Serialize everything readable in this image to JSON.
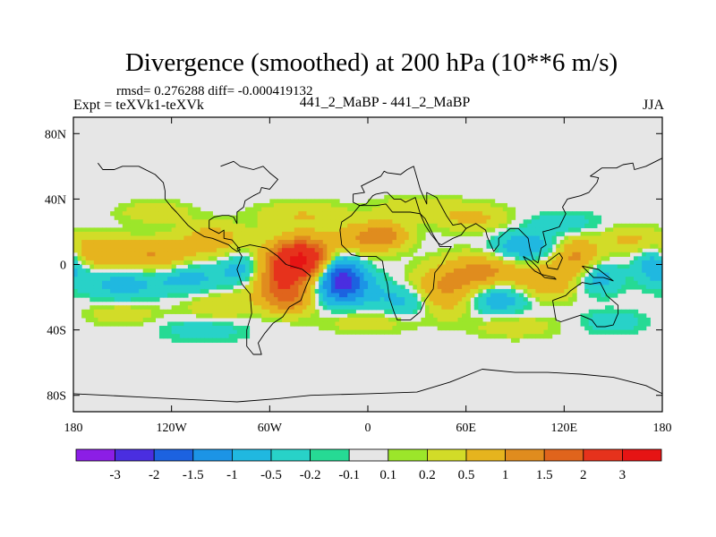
{
  "title": "Divergence (smoothed) at 200 hPa (10**6 m/s)",
  "stats": "rmsd= 0.276288 diff= -0.000419132",
  "experiment": "Expt = teXVk1-teXVk",
  "cases": "441_2_MaBP - 441_2_MaBP",
  "season": "JJA",
  "chart_data": {
    "type": "heatmap",
    "title": "Divergence (smoothed) at 200 hPa (10**6 m/s)",
    "projection": "cylindrical equidistant",
    "xlim": [
      -180,
      180
    ],
    "ylim": [
      -90,
      90
    ],
    "x_ticks": [
      {
        "value": -180,
        "label": "180"
      },
      {
        "value": -120,
        "label": "120W"
      },
      {
        "value": -60,
        "label": "60W"
      },
      {
        "value": 0,
        "label": "0"
      },
      {
        "value": 60,
        "label": "60E"
      },
      {
        "value": 120,
        "label": "120E"
      },
      {
        "value": 180,
        "label": "180"
      }
    ],
    "y_ticks": [
      {
        "value": 80,
        "label": "80N"
      },
      {
        "value": 40,
        "label": "40N"
      },
      {
        "value": 0,
        "label": "0"
      },
      {
        "value": -40,
        "label": "40S"
      },
      {
        "value": -80,
        "label": "80S"
      }
    ],
    "colorbar": {
      "labels": [
        "-3",
        "-2",
        "-1.5",
        "-1",
        "-0.5",
        "-0.2",
        "-0.1",
        "0.1",
        "0.2",
        "0.5",
        "1",
        "1.5",
        "2",
        "3"
      ],
      "colors": [
        "#8c1ee6",
        "#4a2ee0",
        "#1c62e0",
        "#1c94e6",
        "#20b8e0",
        "#28d2c8",
        "#26da94",
        "#e6e6e6",
        "#9ce62a",
        "#d2dc28",
        "#e6b41e",
        "#e08c1e",
        "#e0641c",
        "#e6321c",
        "#e61414"
      ]
    },
    "grid": false,
    "features": [
      {
        "lon": -40,
        "lat": 5,
        "sx": 14,
        "sy": 8,
        "value": 2.2
      },
      {
        "lon": -35,
        "lat": -2,
        "sx": 18,
        "sy": 10,
        "value": 1.2
      },
      {
        "lon": -18,
        "lat": -5,
        "sx": 10,
        "sy": 10,
        "value": -2.4
      },
      {
        "lon": -12,
        "lat": -14,
        "sx": 14,
        "sy": 8,
        "value": -1.0
      },
      {
        "lon": -55,
        "lat": -10,
        "sx": 12,
        "sy": 9,
        "value": 1.4
      },
      {
        "lon": -48,
        "lat": -22,
        "sx": 10,
        "sy": 6,
        "value": 1.0
      },
      {
        "lon": -5,
        "lat": 15,
        "sx": 12,
        "sy": 7,
        "value": 0.9
      },
      {
        "lon": 12,
        "lat": 18,
        "sx": 10,
        "sy": 6,
        "value": 1.0
      },
      {
        "lon": 45,
        "lat": -18,
        "sx": 16,
        "sy": 9,
        "value": 1.1
      },
      {
        "lon": 25,
        "lat": -22,
        "sx": 12,
        "sy": 7,
        "value": -0.9
      },
      {
        "lon": 70,
        "lat": -5,
        "sx": 18,
        "sy": 8,
        "value": 1.2
      },
      {
        "lon": 78,
        "lat": -20,
        "sx": 14,
        "sy": 7,
        "value": -1.0
      },
      {
        "lon": 95,
        "lat": 10,
        "sx": 14,
        "sy": 7,
        "value": -0.9
      },
      {
        "lon": 65,
        "lat": 28,
        "sx": 16,
        "sy": 6,
        "value": 0.6
      },
      {
        "lon": 110,
        "lat": -10,
        "sx": 14,
        "sy": 8,
        "value": 0.9
      },
      {
        "lon": 128,
        "lat": 5,
        "sx": 10,
        "sy": 8,
        "value": 1.1
      },
      {
        "lon": 140,
        "lat": -8,
        "sx": 10,
        "sy": 7,
        "value": -0.8
      },
      {
        "lon": 160,
        "lat": 15,
        "sx": 12,
        "sy": 6,
        "value": 0.6
      },
      {
        "lon": 175,
        "lat": 0,
        "sx": 8,
        "sy": 8,
        "value": -0.9
      },
      {
        "lon": -165,
        "lat": 8,
        "sx": 14,
        "sy": 7,
        "value": 0.9
      },
      {
        "lon": -150,
        "lat": -12,
        "sx": 16,
        "sy": 7,
        "value": -0.7
      },
      {
        "lon": -130,
        "lat": 5,
        "sx": 16,
        "sy": 7,
        "value": 1.0
      },
      {
        "lon": -110,
        "lat": -8,
        "sx": 14,
        "sy": 7,
        "value": -0.7
      },
      {
        "lon": -95,
        "lat": 15,
        "sx": 14,
        "sy": 7,
        "value": 0.8
      },
      {
        "lon": -75,
        "lat": -3,
        "sx": 10,
        "sy": 7,
        "value": -0.9
      },
      {
        "lon": -90,
        "lat": -25,
        "sx": 16,
        "sy": 6,
        "value": 0.5
      },
      {
        "lon": -130,
        "lat": 32,
        "sx": 16,
        "sy": 5,
        "value": 0.4
      },
      {
        "lon": -40,
        "lat": 30,
        "sx": 20,
        "sy": 6,
        "value": 0.5
      },
      {
        "lon": 30,
        "lat": 35,
        "sx": 18,
        "sy": 5,
        "value": 0.4
      },
      {
        "lon": 120,
        "lat": 25,
        "sx": 16,
        "sy": 5,
        "value": -0.4
      },
      {
        "lon": -100,
        "lat": -40,
        "sx": 18,
        "sy": 5,
        "value": -0.4
      },
      {
        "lon": 0,
        "lat": -35,
        "sx": 20,
        "sy": 5,
        "value": 0.4
      },
      {
        "lon": 90,
        "lat": -38,
        "sx": 18,
        "sy": 5,
        "value": 0.4
      },
      {
        "lon": -150,
        "lat": -30,
        "sx": 16,
        "sy": 5,
        "value": 0.4
      },
      {
        "lon": 150,
        "lat": -35,
        "sx": 14,
        "sy": 5,
        "value": -0.4
      }
    ],
    "coastline": [
      [
        [
          -180,
          -79
        ],
        [
          -160,
          -80
        ],
        [
          -140,
          -81
        ],
        [
          -120,
          -82
        ],
        [
          -100,
          -83
        ],
        [
          -80,
          -84
        ],
        [
          -55,
          -82
        ],
        [
          -35,
          -80
        ],
        [
          0,
          -79
        ],
        [
          30,
          -78
        ],
        [
          50,
          -72
        ],
        [
          70,
          -64
        ],
        [
          90,
          -66
        ],
        [
          110,
          -66
        ],
        [
          130,
          -67
        ],
        [
          150,
          -69
        ],
        [
          170,
          -74
        ],
        [
          180,
          -79
        ]
      ],
      [
        [
          -80,
          10
        ],
        [
          -77,
          5
        ],
        [
          -80,
          -3
        ],
        [
          -77,
          -12
        ],
        [
          -72,
          -18
        ],
        [
          -71,
          -30
        ],
        [
          -74,
          -40
        ],
        [
          -74,
          -50
        ],
        [
          -70,
          -55
        ],
        [
          -65,
          -55
        ],
        [
          -67,
          -48
        ],
        [
          -63,
          -42
        ],
        [
          -58,
          -36
        ],
        [
          -52,
          -32
        ],
        [
          -48,
          -26
        ],
        [
          -41,
          -22
        ],
        [
          -38,
          -14
        ],
        [
          -35,
          -7
        ],
        [
          -40,
          -3
        ],
        [
          -50,
          0
        ],
        [
          -55,
          5
        ],
        [
          -62,
          10
        ],
        [
          -72,
          12
        ],
        [
          -80,
          10
        ]
      ],
      [
        [
          -17,
          21
        ],
        [
          -16,
          12
        ],
        [
          -10,
          6
        ],
        [
          -5,
          5
        ],
        [
          5,
          5
        ],
        [
          9,
          2
        ],
        [
          10,
          -5
        ],
        [
          12,
          -12
        ],
        [
          13,
          -20
        ],
        [
          16,
          -29
        ],
        [
          18,
          -34
        ],
        [
          22,
          -34
        ],
        [
          26,
          -34
        ],
        [
          32,
          -29
        ],
        [
          35,
          -22
        ],
        [
          40,
          -15
        ],
        [
          41,
          -5
        ],
        [
          45,
          0
        ],
        [
          51,
          11
        ],
        [
          44,
          11
        ],
        [
          43,
          13
        ],
        [
          39,
          18
        ],
        [
          35,
          24
        ],
        [
          32,
          31
        ],
        [
          26,
          32
        ],
        [
          20,
          32
        ],
        [
          15,
          32
        ],
        [
          11,
          37
        ],
        [
          5,
          36
        ],
        [
          -5,
          36
        ],
        [
          -10,
          30
        ],
        [
          -16,
          26
        ],
        [
          -17,
          21
        ]
      ],
      [
        [
          -5,
          36
        ],
        [
          -9,
          38
        ],
        [
          -9,
          43
        ],
        [
          -2,
          44
        ],
        [
          -4,
          48
        ],
        [
          2,
          51
        ],
        [
          8,
          54
        ],
        [
          10,
          57
        ],
        [
          12,
          56
        ],
        [
          20,
          55
        ],
        [
          24,
          58
        ],
        [
          28,
          60
        ],
        [
          32,
          46
        ],
        [
          36,
          37
        ],
        [
          36,
          44
        ],
        [
          42,
          41
        ],
        [
          48,
          30
        ],
        [
          52,
          24
        ],
        [
          57,
          25
        ],
        [
          60,
          22
        ],
        [
          57,
          18
        ],
        [
          52,
          16
        ],
        [
          45,
          12
        ],
        [
          43,
          13
        ],
        [
          40,
          18
        ],
        [
          35,
          28
        ],
        [
          32,
          31
        ],
        [
          29,
          41
        ],
        [
          23,
          38
        ],
        [
          20,
          40
        ],
        [
          16,
          40
        ],
        [
          12,
          44
        ],
        [
          10,
          44
        ],
        [
          5,
          43
        ],
        [
          3,
          42
        ],
        [
          -1,
          37
        ],
        [
          -5,
          36
        ]
      ],
      [
        [
          60,
          22
        ],
        [
          66,
          25
        ],
        [
          72,
          21
        ],
        [
          73,
          17
        ],
        [
          77,
          8
        ],
        [
          80,
          12
        ],
        [
          80,
          16
        ],
        [
          87,
          22
        ],
        [
          92,
          22
        ],
        [
          98,
          16
        ],
        [
          99,
          10
        ],
        [
          101,
          3
        ],
        [
          104,
          1
        ],
        [
          106,
          10
        ],
        [
          109,
          12
        ],
        [
          107,
          20
        ],
        [
          111,
          21
        ],
        [
          117,
          23
        ],
        [
          121,
          31
        ],
        [
          119,
          35
        ],
        [
          122,
          40
        ],
        [
          130,
          42
        ],
        [
          135,
          44
        ],
        [
          140,
          50
        ],
        [
          141,
          53
        ],
        [
          136,
          54
        ],
        [
          143,
          59
        ],
        [
          152,
          59
        ],
        [
          156,
          61
        ],
        [
          162,
          62
        ],
        [
          163,
          58
        ],
        [
          170,
          60
        ],
        [
          180,
          65
        ]
      ],
      [
        [
          113,
          -22
        ],
        [
          115,
          -34
        ],
        [
          118,
          -35
        ],
        [
          124,
          -33
        ],
        [
          130,
          -31
        ],
        [
          137,
          -34
        ],
        [
          140,
          -38
        ],
        [
          145,
          -38
        ],
        [
          150,
          -37
        ],
        [
          153,
          -30
        ],
        [
          153,
          -25
        ],
        [
          146,
          -19
        ],
        [
          142,
          -11
        ],
        [
          136,
          -12
        ],
        [
          131,
          -11
        ],
        [
          124,
          -16
        ],
        [
          121,
          -19
        ],
        [
          113,
          -22
        ]
      ],
      [
        [
          95,
          5
        ],
        [
          100,
          2
        ],
        [
          104,
          -2
        ],
        [
          106,
          -6
        ],
        [
          102,
          -4
        ],
        [
          98,
          0
        ],
        [
          95,
          5
        ]
      ],
      [
        [
          106,
          -6
        ],
        [
          114,
          -8
        ],
        [
          115,
          -9
        ],
        [
          108,
          -8
        ],
        [
          106,
          -6
        ]
      ],
      [
        [
          109,
          1
        ],
        [
          117,
          7
        ],
        [
          119,
          4
        ],
        [
          116,
          -3
        ],
        [
          110,
          -2
        ],
        [
          109,
          1
        ]
      ],
      [
        [
          131,
          -1
        ],
        [
          141,
          -3
        ],
        [
          150,
          -10
        ],
        [
          144,
          -8
        ],
        [
          138,
          -8
        ],
        [
          131,
          -1
        ]
      ],
      [
        [
          -165,
          62
        ],
        [
          -162,
          58
        ],
        [
          -155,
          58
        ],
        [
          -150,
          60
        ],
        [
          -140,
          60
        ],
        [
          -130,
          55
        ],
        [
          -125,
          50
        ],
        [
          -124,
          45
        ],
        [
          -124,
          40
        ],
        [
          -120,
          35
        ],
        [
          -117,
          32
        ],
        [
          -110,
          24
        ],
        [
          -105,
          20
        ],
        [
          -100,
          17
        ],
        [
          -95,
          16
        ],
        [
          -90,
          14
        ],
        [
          -85,
          12
        ],
        [
          -83,
          10
        ],
        [
          -80,
          8
        ],
        [
          -78,
          9
        ],
        [
          -83,
          15
        ],
        [
          -88,
          16
        ],
        [
          -88,
          21
        ],
        [
          -91,
          19
        ],
        [
          -97,
          22
        ],
        [
          -97,
          27
        ],
        [
          -94,
          29
        ],
        [
          -89,
          30
        ],
        [
          -85,
          30
        ],
        [
          -82,
          29
        ],
        [
          -80,
          25
        ],
        [
          -80,
          32
        ],
        [
          -76,
          35
        ],
        [
          -75,
          39
        ],
        [
          -70,
          42
        ],
        [
          -66,
          44
        ],
        [
          -65,
          47
        ],
        [
          -60,
          46
        ],
        [
          -55,
          52
        ],
        [
          -60,
          56
        ],
        [
          -64,
          60
        ],
        [
          -70,
          58
        ],
        [
          -78,
          60
        ],
        [
          -82,
          63
        ],
        [
          -90,
          60
        ]
      ]
    ]
  }
}
